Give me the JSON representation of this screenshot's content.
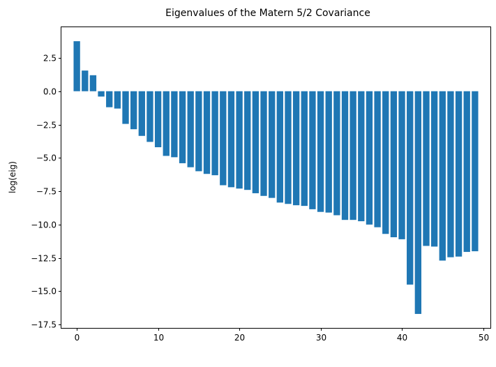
{
  "chart_data": {
    "type": "bar",
    "title": "Eigenvalues of the Matern 5/2 Covariance",
    "xlabel": "",
    "ylabel": "log(eig)",
    "x": [
      0,
      1,
      2,
      3,
      4,
      5,
      6,
      7,
      8,
      9,
      10,
      11,
      12,
      13,
      14,
      15,
      16,
      17,
      18,
      19,
      20,
      21,
      22,
      23,
      24,
      25,
      26,
      27,
      28,
      29,
      30,
      31,
      32,
      33,
      34,
      35,
      36,
      37,
      38,
      39,
      40,
      41,
      42,
      43,
      44,
      45,
      46,
      47,
      48,
      49
    ],
    "values": [
      3.75,
      1.55,
      1.2,
      -0.4,
      -1.2,
      -1.3,
      -2.45,
      -2.85,
      -3.35,
      -3.8,
      -4.2,
      -4.85,
      -4.95,
      -5.4,
      -5.7,
      -6.0,
      -6.2,
      -6.3,
      -7.05,
      -7.2,
      -7.3,
      -7.4,
      -7.65,
      -7.85,
      -8.0,
      -8.35,
      -8.45,
      -8.55,
      -8.6,
      -8.85,
      -9.05,
      -9.1,
      -9.3,
      -9.65,
      -9.65,
      -9.75,
      -10.0,
      -10.2,
      -10.7,
      -10.95,
      -11.1,
      -14.5,
      -16.7,
      -11.6,
      -11.65,
      -12.7,
      -12.45,
      -12.4,
      -12.05,
      -12.0
    ],
    "xlim": [
      -1.9,
      50.9
    ],
    "ylim": [
      -17.75,
      4.8
    ],
    "xticks": [
      0,
      10,
      20,
      30,
      40,
      50
    ],
    "xtick_labels": [
      "0",
      "10",
      "20",
      "30",
      "40",
      "50"
    ],
    "yticks": [
      2.5,
      0,
      -2.5,
      -5,
      -7.5,
      -10,
      -12.5,
      -15,
      -17.5
    ],
    "ytick_labels": [
      "2.5",
      "0.0",
      "−2.5",
      "−5.0",
      "−7.5",
      "−10.0",
      "−12.5",
      "−15.0",
      "−17.5"
    ],
    "bar_width": 0.8,
    "bar_color": "#1f77b4",
    "grid": false,
    "legend": "none"
  }
}
